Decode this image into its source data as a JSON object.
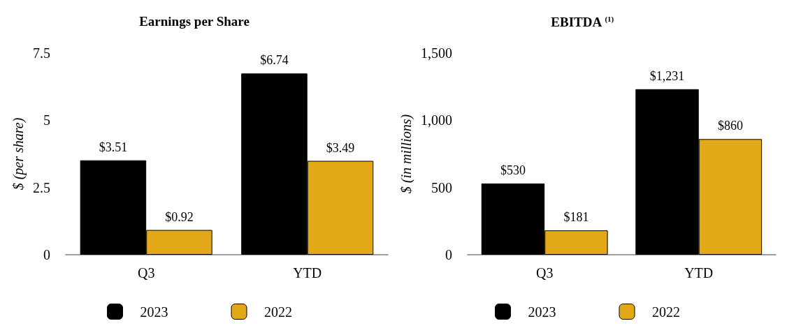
{
  "chart_data": [
    {
      "type": "bar",
      "title": "Earnings per Share",
      "ylabel": "$ (per share)",
      "categories": [
        "Q3",
        "YTD"
      ],
      "series": [
        {
          "name": "2023",
          "color": "#000000",
          "values": [
            3.51,
            6.74
          ],
          "value_labels": [
            "$3.51",
            "$6.74"
          ]
        },
        {
          "name": "2022",
          "color": "#e3a818",
          "values": [
            0.92,
            3.49
          ],
          "value_labels": [
            "$0.92",
            "$3.49"
          ]
        }
      ],
      "ylim": [
        0,
        7.5
      ],
      "yticks": [
        0,
        2.5,
        5,
        7.5
      ],
      "grid": false,
      "legend": "bottom"
    },
    {
      "type": "bar",
      "title": "EBITDA $^{(1)}$",
      "ylabel": "$ (in millions)",
      "categories": [
        "Q3",
        "YTD"
      ],
      "series": [
        {
          "name": "2023",
          "color": "#000000",
          "values": [
            530,
            1231
          ],
          "value_labels": [
            "$530",
            "$1,231"
          ]
        },
        {
          "name": "2022",
          "color": "#e3a818",
          "values": [
            181,
            860
          ],
          "value_labels": [
            "$181",
            "$860"
          ]
        }
      ],
      "ylim": [
        0,
        1500
      ],
      "yticks": [
        0,
        {
          "value": 500,
          "label": "500"
        },
        {
          "value": 1000,
          "label": "1,000"
        },
        {
          "value": 1500,
          "label": "1,500"
        }
      ],
      "grid": false,
      "legend": "bottom"
    }
  ]
}
